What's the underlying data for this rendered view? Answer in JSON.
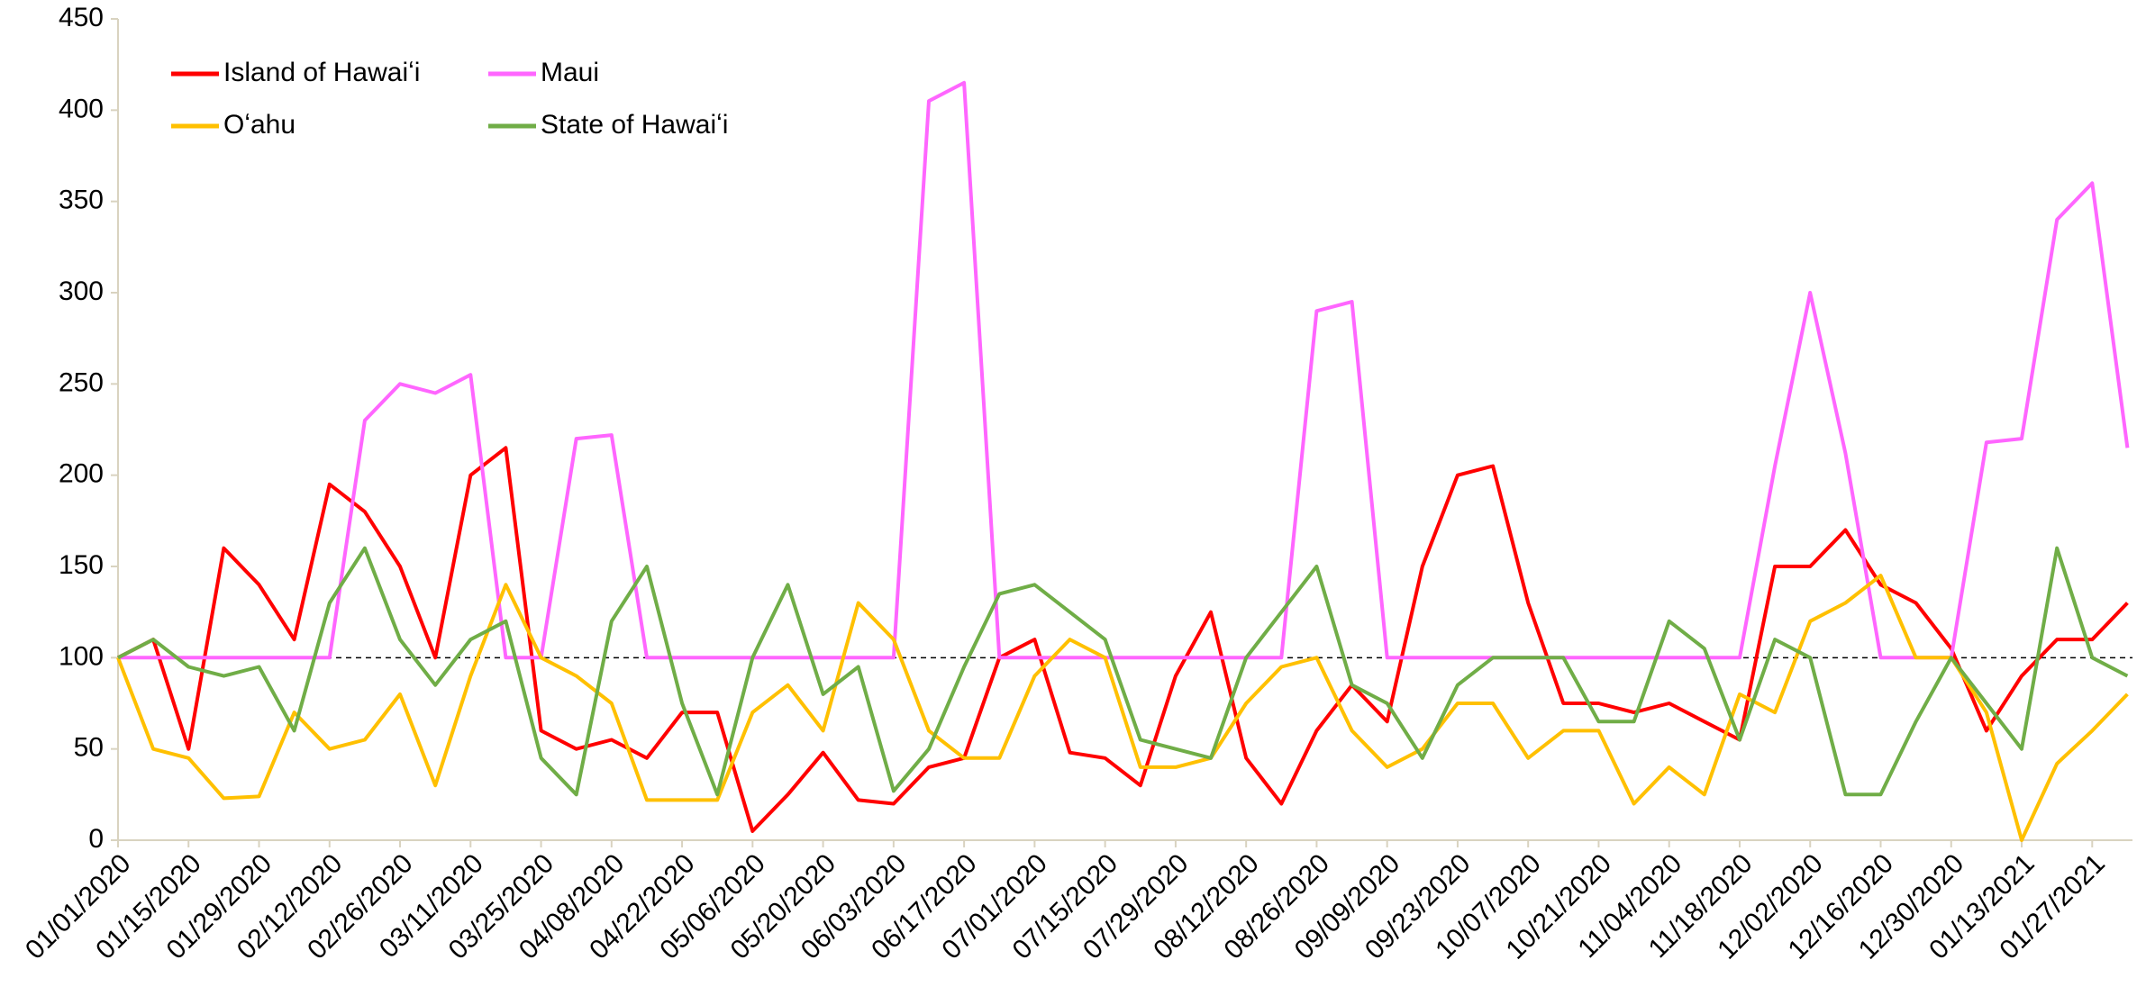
{
  "chart_data": {
    "type": "line",
    "x": [
      "01/01/2020",
      "01/08/2020",
      "01/15/2020",
      "01/22/2020",
      "01/29/2020",
      "02/05/2020",
      "02/12/2020",
      "02/19/2020",
      "02/26/2020",
      "03/04/2020",
      "03/11/2020",
      "03/18/2020",
      "03/25/2020",
      "04/01/2020",
      "04/08/2020",
      "04/15/2020",
      "04/22/2020",
      "04/29/2020",
      "05/06/2020",
      "05/13/2020",
      "05/20/2020",
      "05/27/2020",
      "06/03/2020",
      "06/10/2020",
      "06/17/2020",
      "06/24/2020",
      "07/01/2020",
      "07/08/2020",
      "07/15/2020",
      "07/22/2020",
      "07/29/2020",
      "08/05/2020",
      "08/12/2020",
      "08/19/2020",
      "08/26/2020",
      "09/02/2020",
      "09/09/2020",
      "09/16/2020",
      "09/23/2020",
      "09/30/2020",
      "10/07/2020",
      "10/14/2020",
      "10/21/2020",
      "10/28/2020",
      "11/04/2020",
      "11/11/2020",
      "11/18/2020",
      "11/25/2020",
      "12/02/2020",
      "12/09/2020",
      "12/16/2020",
      "12/23/2020",
      "12/30/2020",
      "01/06/2021",
      "01/13/2021",
      "01/20/2021",
      "01/27/2021",
      "02/03/2021"
    ],
    "series": [
      {
        "name": "Island of Hawaiʻi",
        "color": "#ff0000",
        "values": [
          100,
          110,
          50,
          160,
          140,
          110,
          195,
          180,
          150,
          100,
          200,
          215,
          60,
          50,
          55,
          45,
          70,
          70,
          5,
          25,
          48,
          22,
          20,
          40,
          45,
          100,
          110,
          48,
          45,
          30,
          90,
          125,
          45,
          20,
          60,
          85,
          65,
          150,
          200,
          205,
          130,
          75,
          75,
          70,
          75,
          65,
          55,
          150,
          150,
          170,
          140,
          130,
          105,
          60,
          90,
          110,
          110,
          130
        ]
      },
      {
        "name": "Maui",
        "color": "#ff66ff",
        "values": [
          100,
          100,
          100,
          100,
          100,
          100,
          100,
          230,
          250,
          245,
          255,
          100,
          100,
          220,
          222,
          100,
          100,
          100,
          100,
          100,
          100,
          100,
          100,
          405,
          415,
          100,
          100,
          100,
          100,
          100,
          100,
          100,
          100,
          100,
          290,
          295,
          100,
          100,
          100,
          100,
          100,
          100,
          100,
          100,
          100,
          100,
          100,
          205,
          300,
          212,
          100,
          100,
          100,
          218,
          220,
          340,
          360,
          215
        ]
      },
      {
        "name": "Oʻahu",
        "color": "#ffc000",
        "values": [
          100,
          50,
          45,
          23,
          24,
          70,
          50,
          55,
          80,
          30,
          90,
          140,
          100,
          90,
          75,
          22,
          22,
          22,
          70,
          85,
          60,
          130,
          110,
          60,
          45,
          45,
          90,
          110,
          100,
          40,
          40,
          45,
          75,
          95,
          100,
          60,
          40,
          50,
          75,
          75,
          45,
          60,
          60,
          20,
          40,
          25,
          80,
          70,
          120,
          130,
          145,
          100,
          100,
          70,
          0,
          42,
          60,
          80
        ]
      },
      {
        "name": "State of Hawaiʻi",
        "color": "#70ad47",
        "values": [
          100,
          110,
          95,
          90,
          95,
          60,
          130,
          160,
          110,
          85,
          110,
          120,
          45,
          25,
          120,
          150,
          75,
          25,
          100,
          140,
          80,
          95,
          27,
          50,
          95,
          135,
          140,
          125,
          110,
          55,
          50,
          45,
          100,
          125,
          150,
          85,
          75,
          45,
          85,
          100,
          100,
          100,
          65,
          65,
          120,
          105,
          55,
          110,
          100,
          25,
          25,
          65,
          100,
          75,
          50,
          160,
          100,
          90
        ]
      }
    ],
    "xlim": [
      "01/01/2020",
      "02/04/2021"
    ],
    "xticks": [
      "01/01/2020",
      "01/15/2020",
      "01/29/2020",
      "02/12/2020",
      "02/26/2020",
      "03/11/2020",
      "03/25/2020",
      "04/08/2020",
      "04/22/2020",
      "05/06/2020",
      "05/20/2020",
      "06/03/2020",
      "06/17/2020",
      "07/01/2020",
      "07/15/2020",
      "07/29/2020",
      "08/12/2020",
      "08/26/2020",
      "09/09/2020",
      "09/23/2020",
      "10/07/2020",
      "10/21/2020",
      "11/04/2020",
      "11/18/2020",
      "12/02/2020",
      "12/16/2020",
      "12/30/2020",
      "01/13/2021",
      "01/27/2021"
    ],
    "ylim": [
      0,
      450
    ],
    "yticks": [
      0,
      50,
      100,
      150,
      200,
      250,
      300,
      350,
      400,
      450
    ],
    "reference_line": 100,
    "grid": false,
    "legend": "upper left"
  }
}
